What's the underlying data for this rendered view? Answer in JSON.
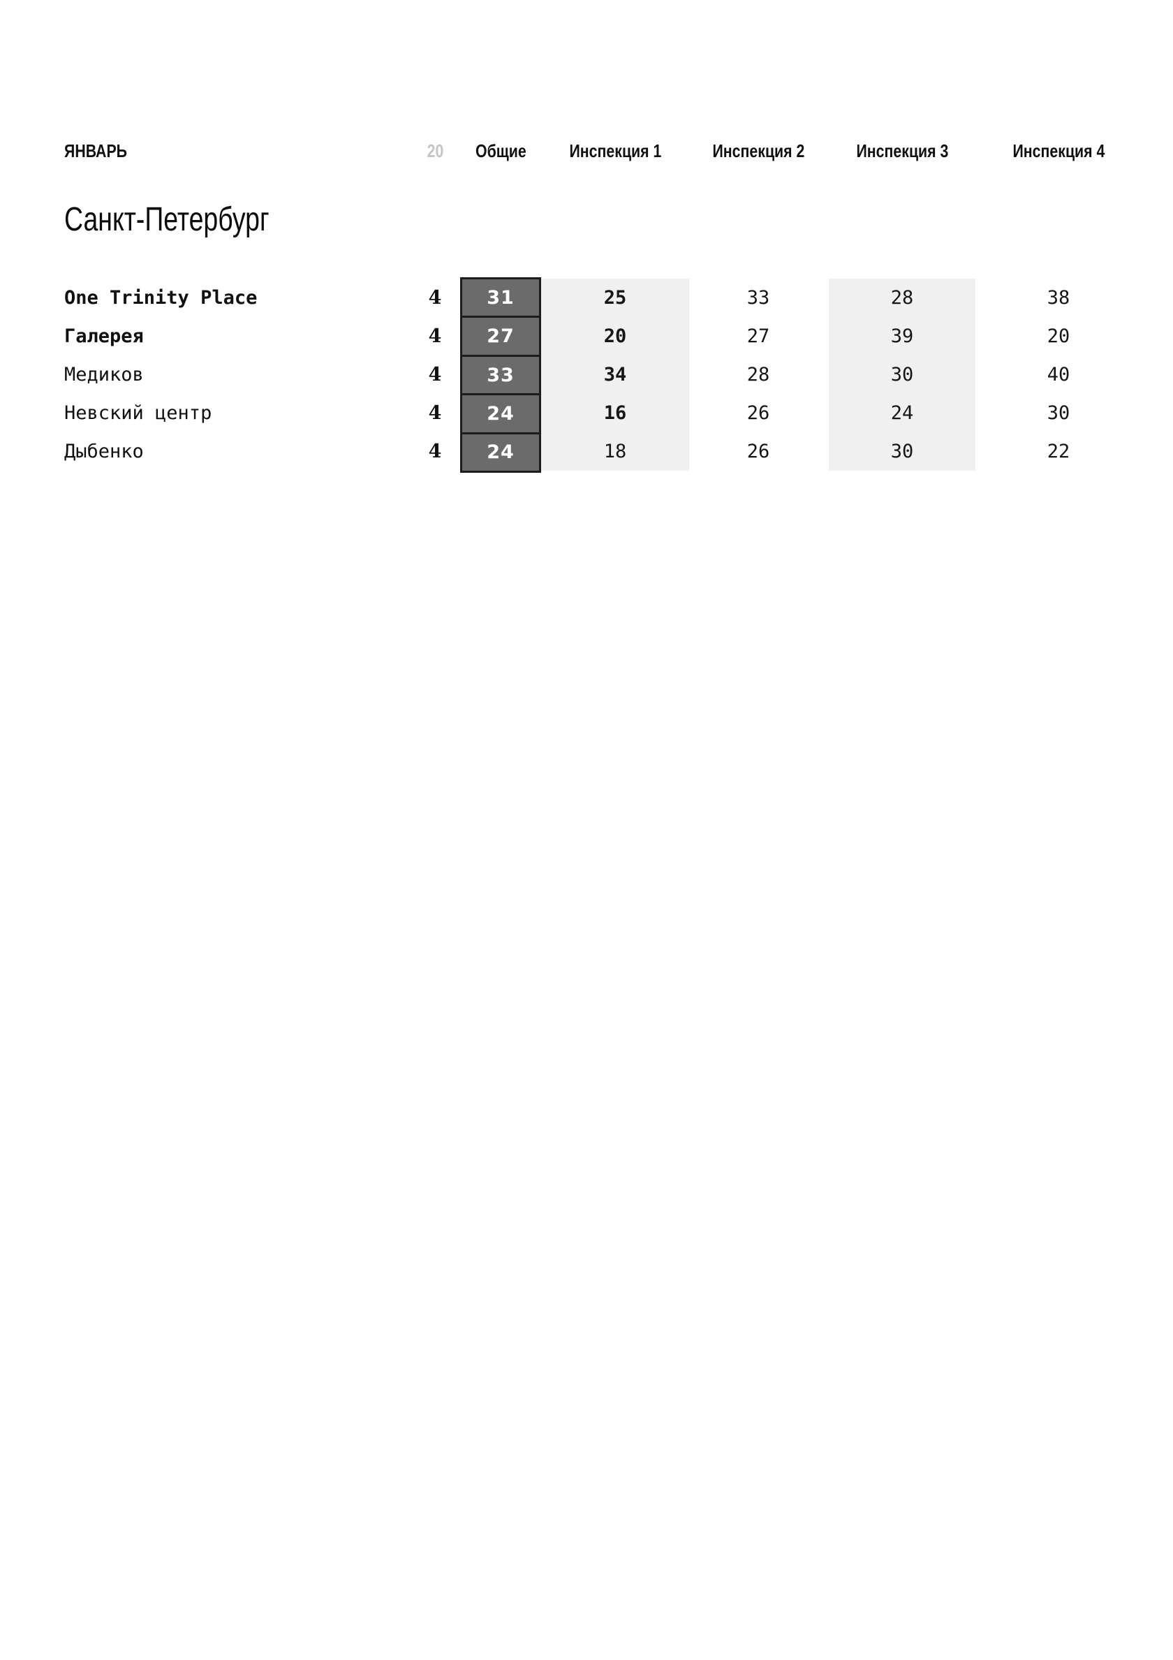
{
  "header": {
    "month": "ЯНВАРЬ",
    "page_number": "20",
    "columns": {
      "total": "Общие",
      "insp1": "Инспекция 1",
      "insp2": "Инспекция 2",
      "insp3": "Инспекция 3",
      "insp4": "Инспекция 4"
    }
  },
  "section": {
    "title": "Санкт-Петербург"
  },
  "colors": {
    "box_fill": "#6b6b6b",
    "box_border": "#1c1c1c",
    "stripe": "#f0f0f0",
    "muted_page_number": "#c4c4c4",
    "text": "#111111"
  },
  "table": {
    "rows": [
      {
        "name": "One Trinity Place",
        "count": "4",
        "total": "31",
        "insp1": "25",
        "insp2": "33",
        "insp3": "28",
        "insp4": "38"
      },
      {
        "name": "Галерея",
        "count": "4",
        "total": "27",
        "insp1": "20",
        "insp2": "27",
        "insp3": "39",
        "insp4": "20"
      },
      {
        "name": "Медиков",
        "count": "4",
        "total": "33",
        "insp1": "34",
        "insp2": "28",
        "insp3": "30",
        "insp4": "40"
      },
      {
        "name": "Невский центр",
        "count": "4",
        "total": "24",
        "insp1": "16",
        "insp2": "26",
        "insp3": "24",
        "insp4": "30"
      },
      {
        "name": "Дыбенко",
        "count": "4",
        "total": "24",
        "insp1": "18",
        "insp2": "26",
        "insp3": "30",
        "insp4": "22"
      }
    ]
  }
}
